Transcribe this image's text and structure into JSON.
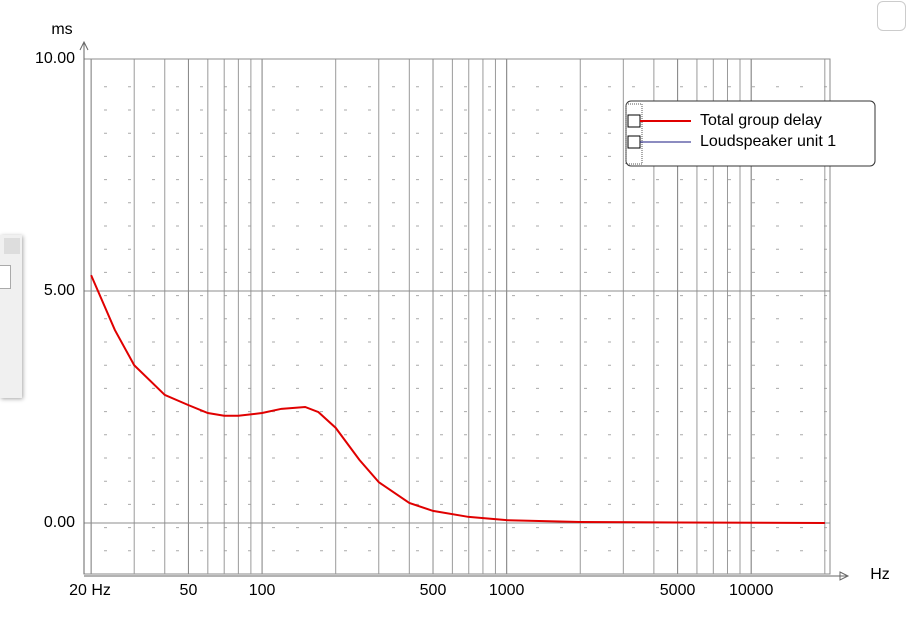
{
  "chart_data": {
    "type": "line",
    "x_label": "Hz",
    "y_label": "ms",
    "x": [
      20,
      25,
      30,
      40,
      50,
      60,
      70,
      80,
      100,
      120,
      150,
      170,
      200,
      250,
      300,
      400,
      500,
      700,
      1000,
      2000,
      5000,
      20000
    ],
    "series": [
      {
        "name": "Loudspeaker unit 1",
        "color": "#1a1a80",
        "values": [
          5.34,
          4.16,
          3.4,
          2.76,
          2.54,
          2.37,
          2.31,
          2.31,
          2.37,
          2.46,
          2.5,
          2.39,
          2.05,
          1.36,
          0.88,
          0.43,
          0.26,
          0.13,
          0.06,
          0.02,
          0.01,
          0
        ]
      },
      {
        "name": "Total group delay",
        "color": "#e00000",
        "values": [
          5.34,
          4.16,
          3.4,
          2.76,
          2.54,
          2.37,
          2.31,
          2.31,
          2.37,
          2.46,
          2.5,
          2.39,
          2.05,
          1.36,
          0.88,
          0.43,
          0.26,
          0.13,
          0.06,
          0.02,
          0.01,
          0
        ]
      }
    ],
    "xlog": true,
    "xlim": [
      18.7,
      21000
    ],
    "xticks": [
      {
        "value": 20,
        "label": "20 Hz"
      },
      50,
      100,
      500,
      1000,
      5000,
      10000
    ],
    "ylim": [
      -1.1,
      10
    ],
    "yticks": [
      {
        "value": 0,
        "label": "0.00"
      },
      {
        "value": 5,
        "label": "5.00"
      },
      {
        "value": 10,
        "label": "10.00"
      }
    ],
    "grid": true
  }
}
